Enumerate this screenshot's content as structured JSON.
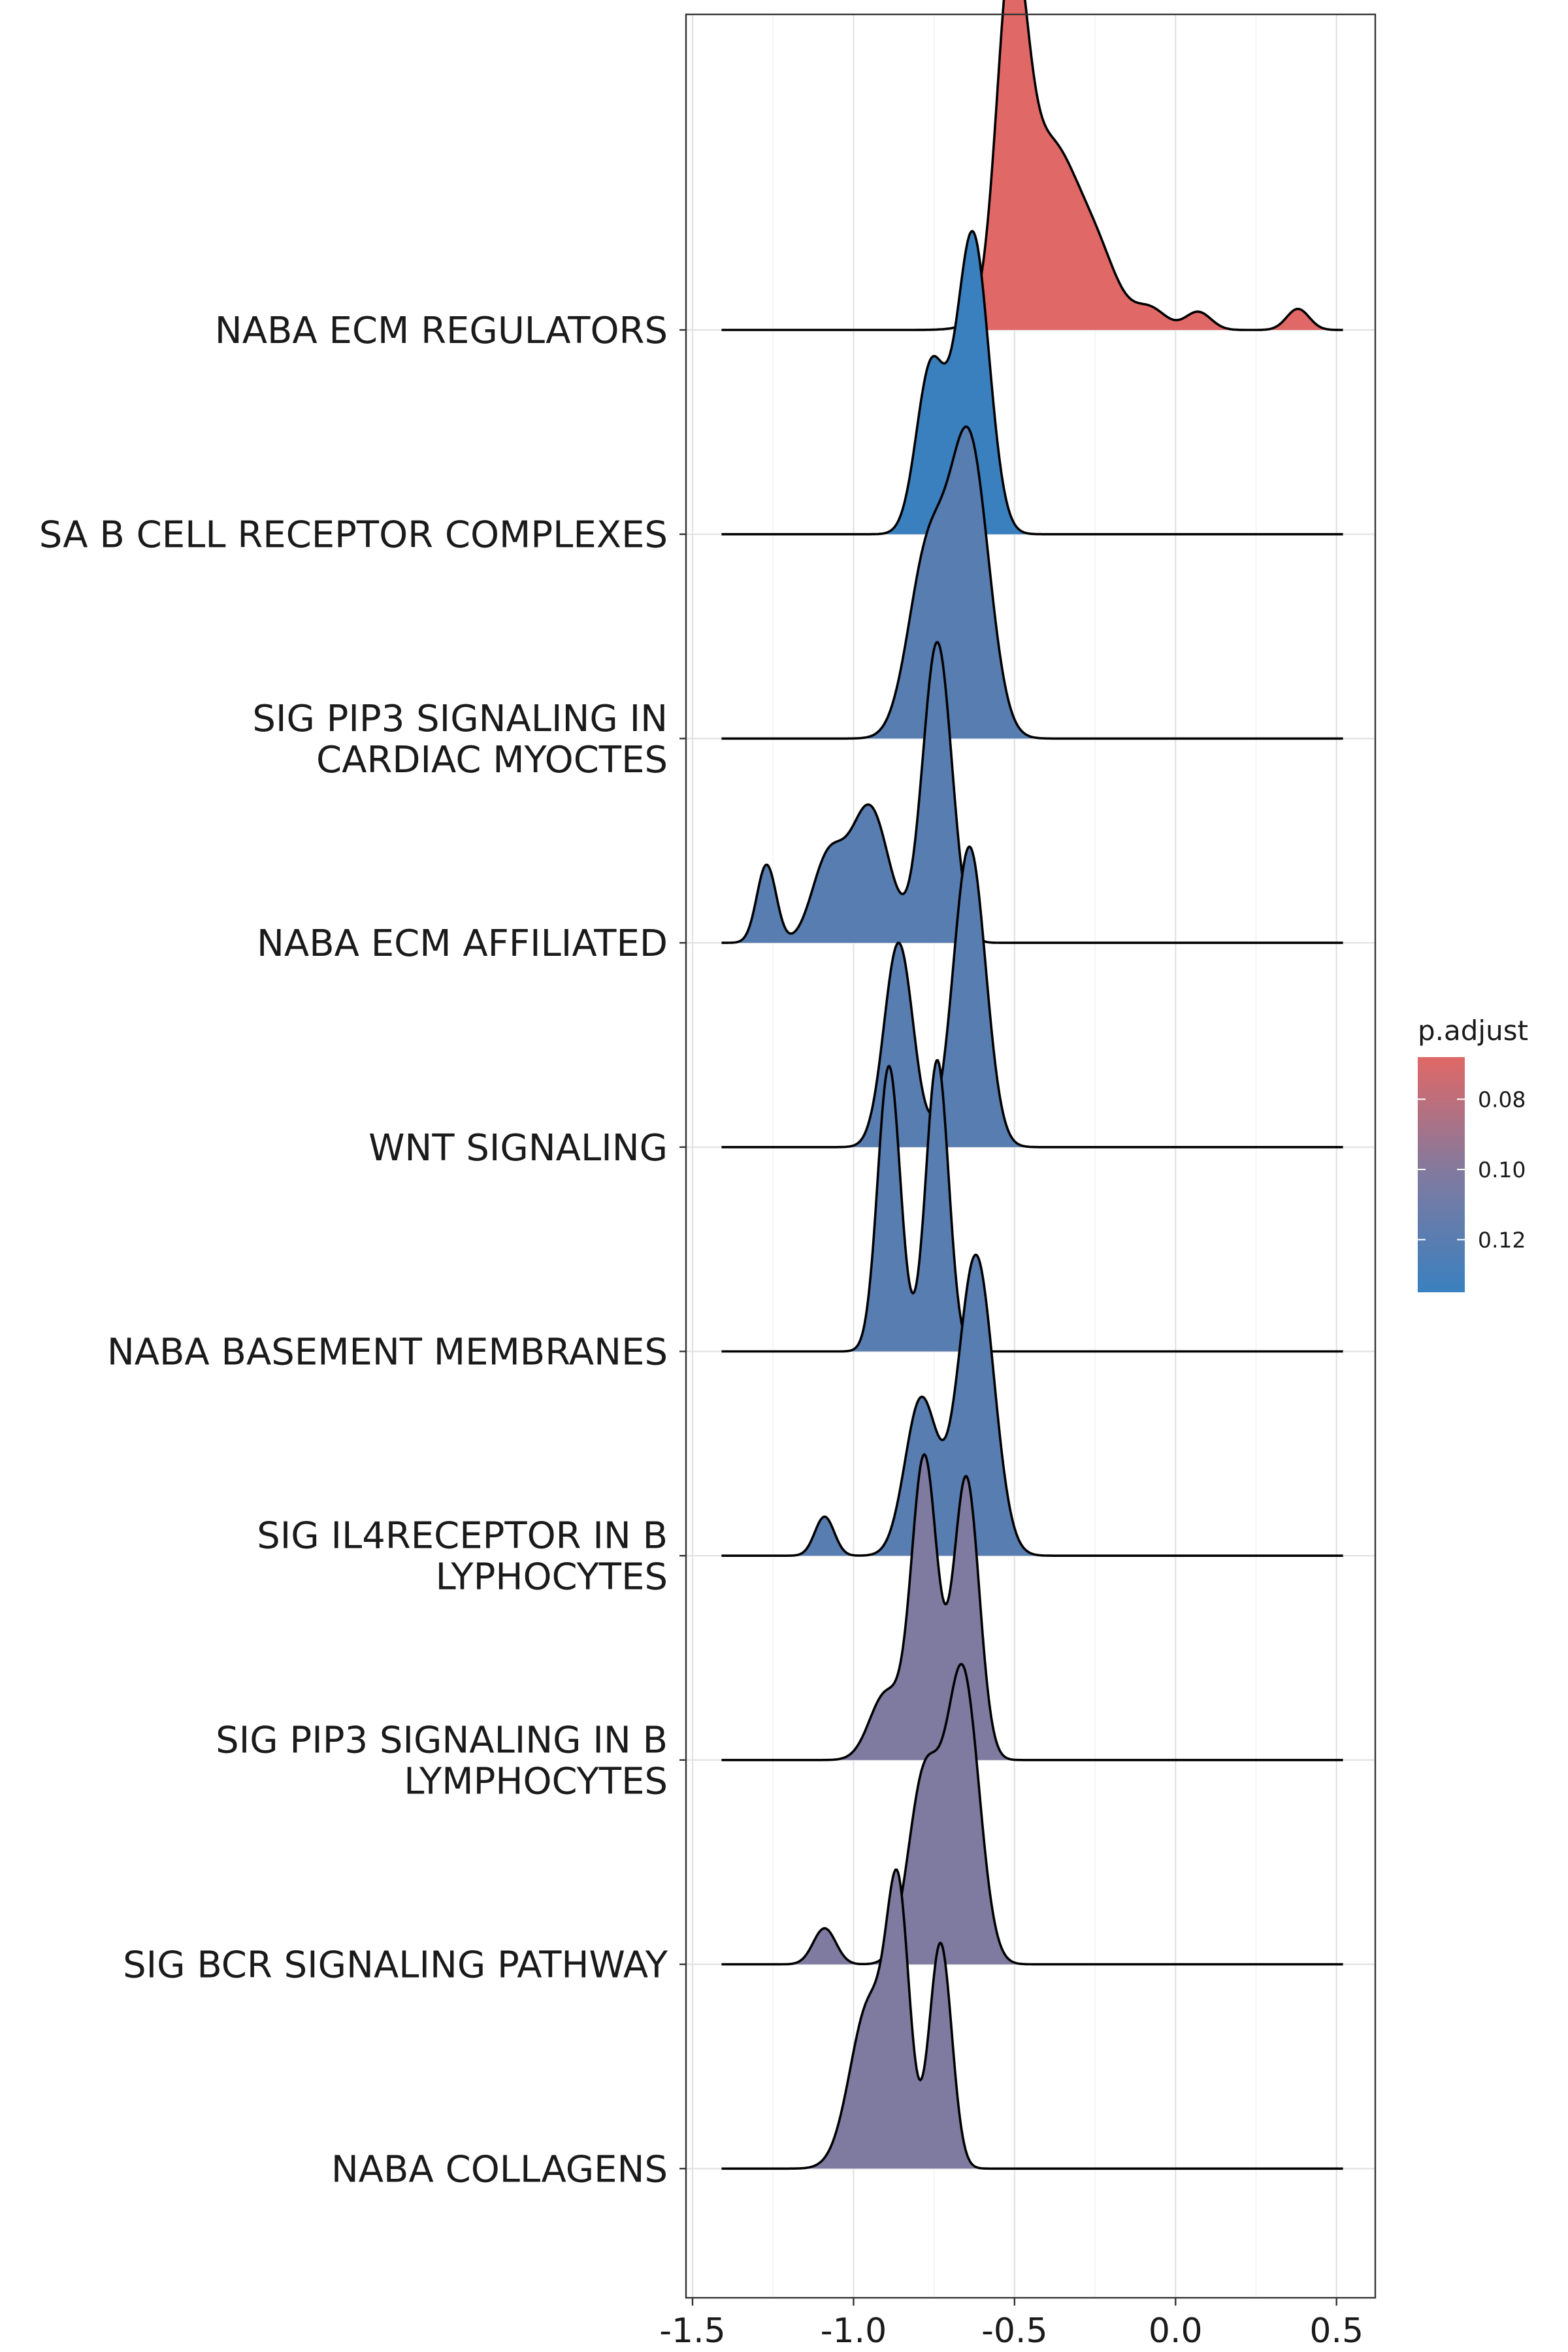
{
  "chart_data": {
    "type": "ridgeline",
    "xlim": [
      -1.5,
      0.6
    ],
    "x_ticks": [
      "-1.5",
      "-1.0",
      "-0.5",
      "0.0",
      "0.5"
    ],
    "x_tick_values": [
      -1.5,
      -1.0,
      -0.5,
      0.0,
      0.5
    ],
    "grid": true,
    "legend": {
      "title": "p.adjust",
      "position": "right",
      "range": [
        0.068,
        0.135
      ],
      "ticks": [
        "0.08",
        "0.10",
        "0.12"
      ],
      "tick_values": [
        0.08,
        0.1,
        0.12
      ],
      "color_low": "#E06866",
      "color_high": "#3A80BF"
    },
    "series": [
      {
        "label_lines": [
          "NABA ECM REGULATORS"
        ],
        "p_adjust": 0.068,
        "color": "#E06866",
        "xrange": [
          -1.41,
          0.52
        ],
        "peaks": [
          [
            -0.51,
            0.045,
            1.0
          ],
          [
            -0.39,
            0.1,
            0.62
          ],
          [
            -0.23,
            0.06,
            0.13
          ],
          [
            -0.08,
            0.05,
            0.07
          ],
          [
            0.07,
            0.04,
            0.06
          ],
          [
            0.38,
            0.035,
            0.07
          ]
        ],
        "fill_from": -0.6
      },
      {
        "label_lines": [
          "SA B CELL RECEPTOR COMPLEXES"
        ],
        "p_adjust": 0.135,
        "color": "#3A80BF",
        "xrange": [
          -1.41,
          0.52
        ],
        "peaks": [
          [
            -0.76,
            0.045,
            0.55
          ],
          [
            -0.63,
            0.05,
            1.0
          ]
        ]
      },
      {
        "label_lines": [
          "SIG PIP3 SIGNALING IN",
          "CARDIAC MYOCTES"
        ],
        "p_adjust": 0.123,
        "color": "#587DB1",
        "xrange": [
          -1.41,
          0.52
        ],
        "peaks": [
          [
            -0.77,
            0.06,
            0.6
          ],
          [
            -0.64,
            0.06,
            0.97
          ]
        ]
      },
      {
        "label_lines": [
          "NABA ECM AFFILIATED"
        ],
        "p_adjust": 0.123,
        "color": "#587DB1",
        "xrange": [
          -1.41,
          0.52
        ],
        "peaks": [
          [
            -1.27,
            0.03,
            0.26
          ],
          [
            -1.08,
            0.05,
            0.27
          ],
          [
            -0.95,
            0.06,
            0.45
          ],
          [
            -0.74,
            0.045,
            1.0
          ]
        ],
        "fill_to": -0.6
      },
      {
        "label_lines": [
          "WNT SIGNALING"
        ],
        "p_adjust": 0.123,
        "color": "#587DB1",
        "xrange": [
          -1.41,
          0.52
        ],
        "peaks": [
          [
            -0.86,
            0.045,
            0.68
          ],
          [
            -0.64,
            0.05,
            1.0
          ]
        ]
      },
      {
        "label_lines": [
          "NABA BASEMENT MEMBRANES"
        ],
        "p_adjust": 0.123,
        "color": "#587DB1",
        "xrange": [
          -1.41,
          0.52
        ],
        "peaks": [
          [
            -0.89,
            0.035,
            0.95
          ],
          [
            -0.74,
            0.035,
            0.97
          ]
        ],
        "fill_to": -0.56
      },
      {
        "label_lines": [
          "SIG IL4RECEPTOR IN B",
          "LYPHOCYTES"
        ],
        "p_adjust": 0.123,
        "color": "#587DB1",
        "xrange": [
          -1.41,
          0.52
        ],
        "peaks": [
          [
            -1.09,
            0.03,
            0.13
          ],
          [
            -0.79,
            0.05,
            0.52
          ],
          [
            -0.62,
            0.055,
            1.0
          ]
        ]
      },
      {
        "label_lines": [
          "SIG PIP3 SIGNALING IN B",
          "LYMPHOCYTES"
        ],
        "p_adjust": 0.11,
        "color": "#7F7AA0",
        "xrange": [
          -1.41,
          0.52
        ],
        "peaks": [
          [
            -0.9,
            0.05,
            0.22
          ],
          [
            -0.78,
            0.04,
            1.0
          ],
          [
            -0.65,
            0.04,
            0.94
          ]
        ]
      },
      {
        "label_lines": [
          "SIG BCR SIGNALING PATHWAY"
        ],
        "p_adjust": 0.11,
        "color": "#7F7AA0",
        "xrange": [
          -1.41,
          0.52
        ],
        "peaks": [
          [
            -1.09,
            0.035,
            0.12
          ],
          [
            -0.78,
            0.05,
            0.62
          ],
          [
            -0.66,
            0.05,
            0.96
          ]
        ]
      },
      {
        "label_lines": [
          "NABA COLLAGENS"
        ],
        "p_adjust": 0.11,
        "color": "#7F7AA0",
        "xrange": [
          -1.41,
          0.52
        ],
        "peaks": [
          [
            -0.95,
            0.06,
            0.55
          ],
          [
            -0.86,
            0.035,
            0.8
          ],
          [
            -0.73,
            0.035,
            0.75
          ]
        ]
      }
    ]
  }
}
